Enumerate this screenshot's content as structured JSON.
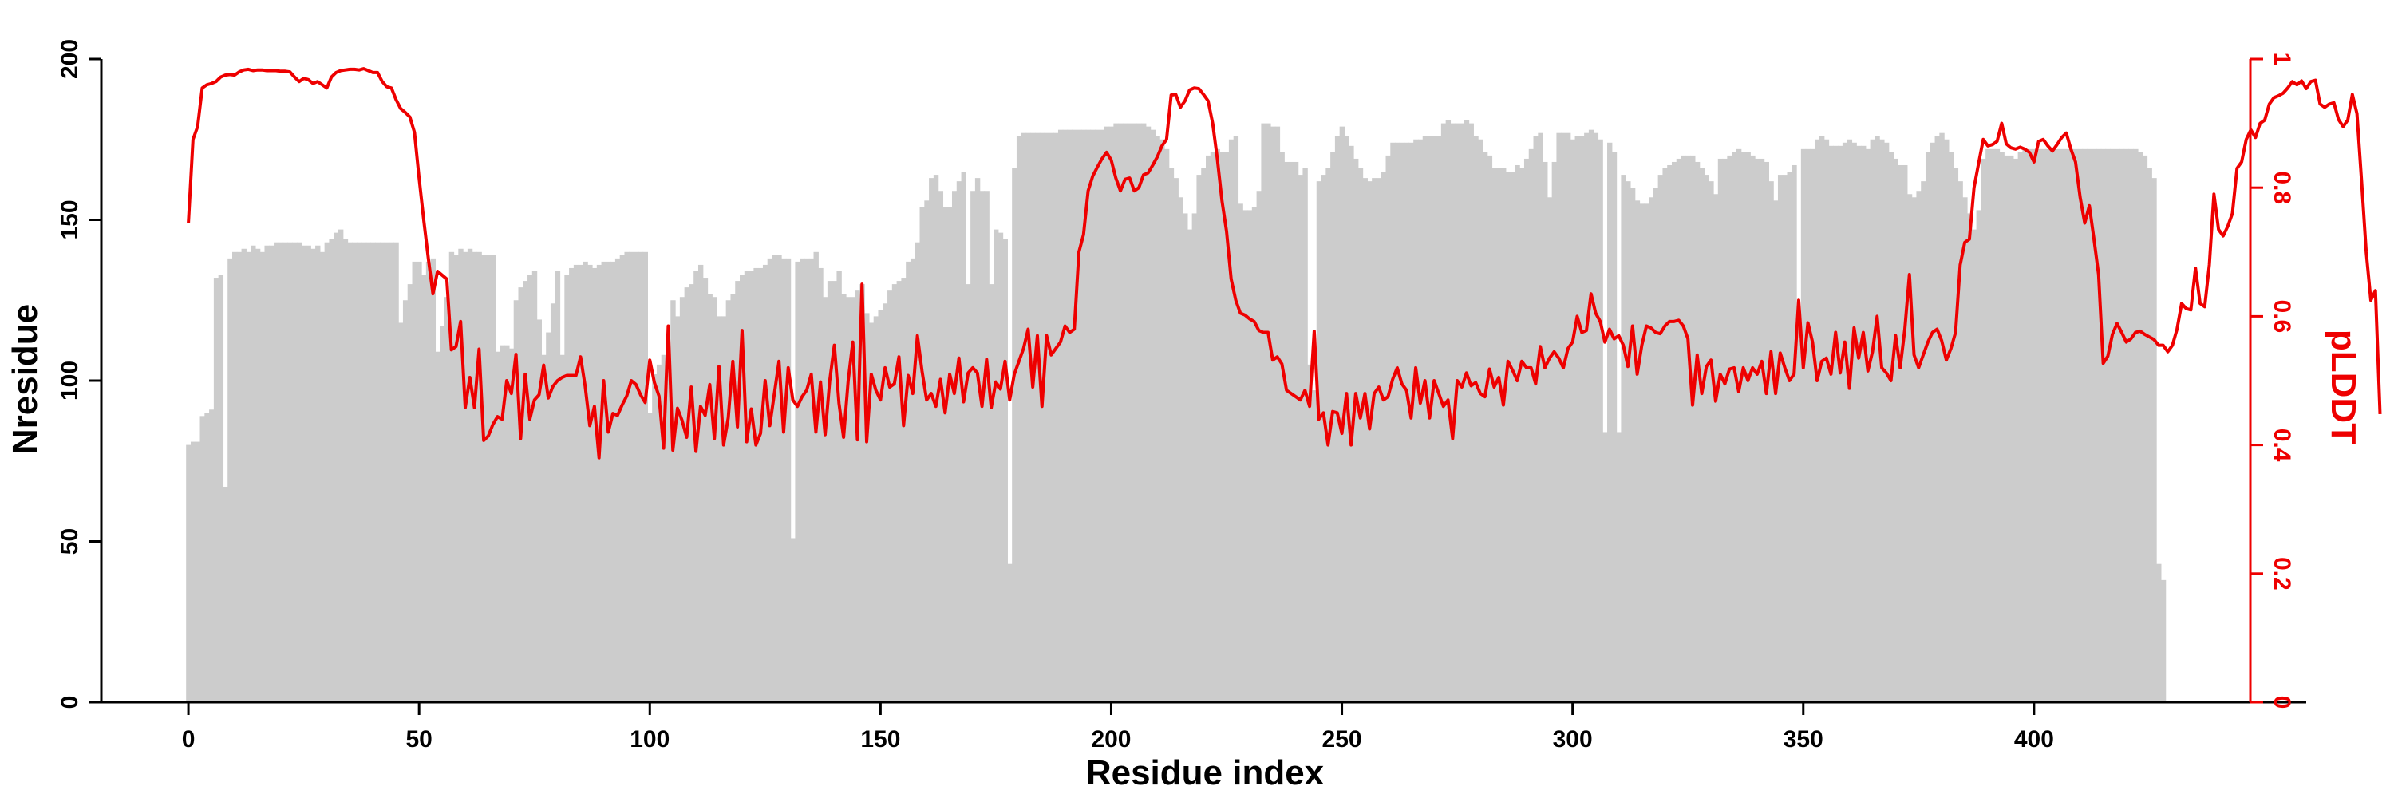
{
  "chart_data": {
    "type": "bar+line",
    "xlabel": "Residue index",
    "ylabel_left": "Nresidue",
    "ylabel_right": "pLDDT",
    "xlim": [
      -18,
      459
    ],
    "ylim_left": [
      0,
      200
    ],
    "ylim_right": [
      0,
      1
    ],
    "xticks": [
      "0",
      "50",
      "100",
      "150",
      "200",
      "250",
      "300",
      "350",
      "400"
    ],
    "yticks_left": [
      "0",
      "50",
      "100",
      "150",
      "200"
    ],
    "yticks_right": [
      "0",
      "0.2",
      "0.4",
      "0.6",
      "0.8",
      "1"
    ],
    "colors": {
      "bars": "#cccccc",
      "line": "#ee0000",
      "axis": "#000000",
      "right_axis": "#ee0000"
    },
    "grid": false,
    "series": [
      {
        "kind": "bar",
        "axis": "left",
        "x_start": 0,
        "values": [
          80,
          81,
          81,
          89,
          90,
          91,
          132,
          133,
          67,
          138,
          140,
          140,
          141,
          140,
          142,
          141,
          140,
          142,
          142,
          143,
          143,
          143,
          143,
          143,
          143,
          142,
          142,
          141,
          142,
          140,
          143,
          144,
          146,
          147,
          144,
          143,
          143,
          143,
          143,
          143,
          143,
          143,
          143,
          143,
          143,
          143,
          118,
          125,
          130,
          137,
          137,
          133,
          137,
          138,
          109,
          117,
          126,
          140,
          139,
          141,
          140,
          141,
          140,
          140,
          139,
          139,
          139,
          109,
          111,
          111,
          110,
          125,
          129,
          131,
          133,
          134,
          119,
          108,
          115,
          124,
          134,
          108,
          133,
          135,
          136,
          136,
          137,
          136,
          135,
          136,
          137,
          137,
          137,
          138,
          139,
          140,
          140,
          140,
          140,
          140,
          90,
          102,
          105,
          108,
          108,
          125,
          120,
          126,
          129,
          130,
          134,
          136,
          132,
          127,
          126,
          120,
          120,
          125,
          127,
          131,
          133,
          134,
          134,
          135,
          135,
          136,
          138,
          139,
          139,
          138,
          138,
          51,
          137,
          138,
          138,
          138,
          140,
          135,
          126,
          131,
          131,
          134,
          127,
          126,
          126,
          128,
          130,
          121,
          118,
          120,
          122,
          124,
          128,
          130,
          131,
          132,
          137,
          138,
          143,
          154,
          156,
          163,
          164,
          159,
          154,
          154,
          159,
          162,
          165,
          130,
          159,
          163,
          159,
          159,
          130,
          147,
          146,
          144,
          43,
          166,
          176,
          177,
          177,
          177,
          177,
          177,
          177,
          177,
          177,
          178,
          178,
          178,
          178,
          178,
          178,
          178,
          178,
          178,
          178,
          179,
          179,
          180,
          180,
          180,
          180,
          180,
          180,
          180,
          179,
          178,
          176,
          175,
          172,
          166,
          163,
          157,
          152,
          147,
          152,
          164,
          166,
          170,
          171,
          172,
          171,
          171,
          175,
          176,
          155,
          153,
          153,
          154,
          159,
          180,
          180,
          179,
          179,
          171,
          168,
          168,
          168,
          164,
          166,
          105,
          97,
          162,
          164,
          166,
          171,
          176,
          179,
          176,
          173,
          169,
          166,
          163,
          162,
          163,
          163,
          165,
          170,
          174,
          174,
          174,
          174,
          174,
          175,
          175,
          176,
          176,
          176,
          176,
          180,
          181,
          180,
          180,
          180,
          181,
          180,
          176,
          175,
          171,
          170,
          166,
          166,
          166,
          165,
          165,
          167,
          166,
          169,
          172,
          176,
          177,
          168,
          157,
          168,
          177,
          177,
          177,
          175,
          176,
          176,
          177,
          178,
          177,
          175,
          84,
          174,
          171,
          84,
          164,
          162,
          160,
          156,
          155,
          155,
          157,
          160,
          164,
          166,
          167,
          168,
          169,
          170,
          170,
          170,
          168,
          166,
          164,
          162,
          158,
          169,
          169,
          170,
          171,
          172,
          171,
          171,
          170,
          169,
          169,
          168,
          162,
          156,
          164,
          164,
          165,
          167,
          118,
          172,
          172,
          172,
          175,
          176,
          175,
          173,
          173,
          173,
          174,
          175,
          174,
          173,
          173,
          172,
          175,
          176,
          175,
          174,
          171,
          169,
          167,
          167,
          158,
          157,
          159,
          162,
          171,
          174,
          176,
          177,
          175,
          171,
          166,
          162,
          157,
          152,
          147,
          153,
          169,
          172,
          172,
          172,
          171,
          170,
          170,
          169,
          171,
          172,
          172,
          172,
          172,
          172,
          172,
          172,
          172,
          172,
          172,
          172,
          172,
          172,
          172,
          172,
          172,
          172,
          172,
          172,
          172,
          172,
          172,
          172,
          172,
          172,
          171,
          170,
          166,
          163,
          43,
          38
        ]
      },
      {
        "kind": "line",
        "axis": "right",
        "x_start": 0,
        "values": [
          0.745,
          0.875,
          0.895,
          0.955,
          0.96,
          0.962,
          0.965,
          0.972,
          0.975,
          0.976,
          0.975,
          0.98,
          0.983,
          0.984,
          0.982,
          0.983,
          0.983,
          0.982,
          0.982,
          0.982,
          0.981,
          0.981,
          0.98,
          0.972,
          0.965,
          0.97,
          0.968,
          0.962,
          0.965,
          0.96,
          0.955,
          0.972,
          0.979,
          0.982,
          0.983,
          0.984,
          0.984,
          0.983,
          0.985,
          0.982,
          0.979,
          0.979,
          0.965,
          0.957,
          0.955,
          0.937,
          0.923,
          0.917,
          0.91,
          0.886,
          0.815,
          0.75,
          0.69,
          0.635,
          0.67,
          0.664,
          0.658,
          0.548,
          0.553,
          0.592,
          0.458,
          0.505,
          0.458,
          0.549,
          0.407,
          0.414,
          0.432,
          0.444,
          0.44,
          0.5,
          0.48,
          0.541,
          0.41,
          0.51,
          0.44,
          0.47,
          0.478,
          0.524,
          0.473,
          0.491,
          0.5,
          0.505,
          0.508,
          0.508,
          0.508,
          0.537,
          0.491,
          0.43,
          0.46,
          0.38,
          0.5,
          0.42,
          0.449,
          0.446,
          0.462,
          0.476,
          0.5,
          0.494,
          0.478,
          0.466,
          0.532,
          0.497,
          0.476,
          0.395,
          0.585,
          0.392,
          0.457,
          0.438,
          0.412,
          0.49,
          0.39,
          0.46,
          0.446,
          0.494,
          0.41,
          0.522,
          0.4,
          0.442,
          0.53,
          0.428,
          0.578,
          0.405,
          0.456,
          0.4,
          0.418,
          0.5,
          0.43,
          0.48,
          0.53,
          0.42,
          0.52,
          0.47,
          0.46,
          0.475,
          0.485,
          0.51,
          0.42,
          0.498,
          0.416,
          0.5,
          0.555,
          0.465,
          0.412,
          0.5,
          0.56,
          0.408,
          0.65,
          0.405,
          0.51,
          0.485,
          0.47,
          0.52,
          0.49,
          0.495,
          0.537,
          0.43,
          0.508,
          0.48,
          0.57,
          0.515,
          0.47,
          0.48,
          0.46,
          0.502,
          0.45,
          0.51,
          0.48,
          0.535,
          0.467,
          0.512,
          0.52,
          0.512,
          0.46,
          0.533,
          0.458,
          0.498,
          0.487,
          0.53,
          0.47,
          0.51,
          0.53,
          0.55,
          0.58,
          0.49,
          0.57,
          0.46,
          0.57,
          0.54,
          0.55,
          0.56,
          0.585,
          0.575,
          0.58,
          0.7,
          0.727,
          0.795,
          0.818,
          0.832,
          0.845,
          0.855,
          0.843,
          0.815,
          0.795,
          0.813,
          0.815,
          0.795,
          0.8,
          0.82,
          0.823,
          0.835,
          0.848,
          0.865,
          0.875,
          0.944,
          0.945,
          0.925,
          0.935,
          0.952,
          0.955,
          0.954,
          0.945,
          0.935,
          0.9,
          0.845,
          0.78,
          0.732,
          0.658,
          0.625,
          0.605,
          0.602,
          0.596,
          0.592,
          0.578,
          0.575,
          0.575,
          0.532,
          0.537,
          0.526,
          0.485,
          0.48,
          0.475,
          0.47,
          0.485,
          0.46,
          0.577,
          0.44,
          0.45,
          0.4,
          0.452,
          0.45,
          0.418,
          0.48,
          0.4,
          0.48,
          0.442,
          0.48,
          0.425,
          0.48,
          0.49,
          0.47,
          0.475,
          0.502,
          0.52,
          0.495,
          0.485,
          0.442,
          0.52,
          0.465,
          0.5,
          0.442,
          0.5,
          0.48,
          0.46,
          0.47,
          0.41,
          0.5,
          0.49,
          0.512,
          0.492,
          0.497,
          0.48,
          0.475,
          0.518,
          0.49,
          0.505,
          0.462,
          0.53,
          0.516,
          0.5,
          0.53,
          0.52,
          0.52,
          0.495,
          0.553,
          0.52,
          0.535,
          0.545,
          0.535,
          0.52,
          0.55,
          0.56,
          0.6,
          0.575,
          0.578,
          0.635,
          0.605,
          0.592,
          0.56,
          0.58,
          0.565,
          0.57,
          0.555,
          0.522,
          0.585,
          0.51,
          0.555,
          0.585,
          0.582,
          0.575,
          0.573,
          0.585,
          0.592,
          0.592,
          0.594,
          0.585,
          0.565,
          0.462,
          0.54,
          0.48,
          0.522,
          0.532,
          0.468,
          0.51,
          0.495,
          0.518,
          0.52,
          0.483,
          0.52,
          0.5,
          0.52,
          0.51,
          0.53,
          0.48,
          0.545,
          0.48,
          0.543,
          0.52,
          0.5,
          0.51,
          0.625,
          0.52,
          0.59,
          0.56,
          0.5,
          0.53,
          0.535,
          0.51,
          0.575,
          0.512,
          0.56,
          0.488,
          0.582,
          0.535,
          0.575,
          0.515,
          0.545,
          0.6,
          0.52,
          0.512,
          0.5,
          0.57,
          0.52,
          0.58,
          0.665,
          0.54,
          0.52,
          0.54,
          0.56,
          0.575,
          0.58,
          0.562,
          0.532,
          0.55,
          0.575,
          0.68,
          0.715,
          0.72,
          0.8,
          0.838,
          0.875,
          0.865,
          0.867,
          0.872,
          0.9,
          0.868,
          0.862,
          0.86,
          0.863,
          0.86,
          0.855,
          0.84,
          0.872,
          0.875,
          0.865,
          0.857,
          0.867,
          0.878,
          0.885,
          0.86,
          0.84,
          0.785,
          0.745,
          0.772,
          0.72,
          0.665,
          0.527,
          0.538,
          0.572,
          0.589,
          0.575,
          0.56,
          0.565,
          0.575,
          0.577,
          0.572,
          0.568,
          0.564,
          0.555,
          0.555,
          0.545,
          0.555,
          0.58,
          0.62,
          0.612,
          0.61,
          0.675,
          0.62,
          0.615,
          0.68,
          0.79,
          0.735,
          0.725,
          0.74,
          0.76,
          0.83,
          0.84,
          0.875,
          0.89,
          0.878,
          0.9,
          0.905,
          0.93,
          0.94,
          0.943,
          0.947,
          0.955,
          0.965,
          0.96,
          0.966,
          0.954,
          0.965,
          0.967,
          0.93,
          0.925,
          0.93,
          0.932,
          0.906,
          0.895,
          0.905,
          0.945,
          0.915,
          0.81,
          0.7,
          0.625,
          0.64,
          0.448
        ]
      }
    ]
  }
}
